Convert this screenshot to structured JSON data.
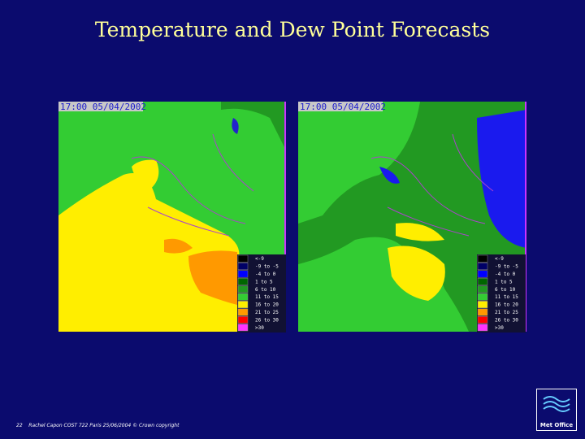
{
  "title": "Temperature and Dew Point Forecasts",
  "panels": [
    {
      "timestamp": "17:00 05/04/2002"
    },
    {
      "timestamp": "17:00 05/04/2002"
    }
  ],
  "legend": [
    {
      "label": "<-9",
      "color": "#000000"
    },
    {
      "label": "-9 to -5",
      "color": "#000066"
    },
    {
      "label": "-4 to 0",
      "color": "#0000ff"
    },
    {
      "label": "1 to 5",
      "color": "#006600"
    },
    {
      "label": "6 to 10",
      "color": "#229922"
    },
    {
      "label": "11 to 15",
      "color": "#33cc33"
    },
    {
      "label": "16 to 20",
      "color": "#ffee00"
    },
    {
      "label": "21 to 25",
      "color": "#ff9900"
    },
    {
      "label": "26 to 30",
      "color": "#ff0000"
    },
    {
      "label": ">30",
      "color": "#ff33ff"
    }
  ],
  "footer": {
    "page": "22",
    "text": "Rachel Capon COST 722 Paris 25/06/2004 © Crown copyright"
  },
  "logo": "Met Office"
}
